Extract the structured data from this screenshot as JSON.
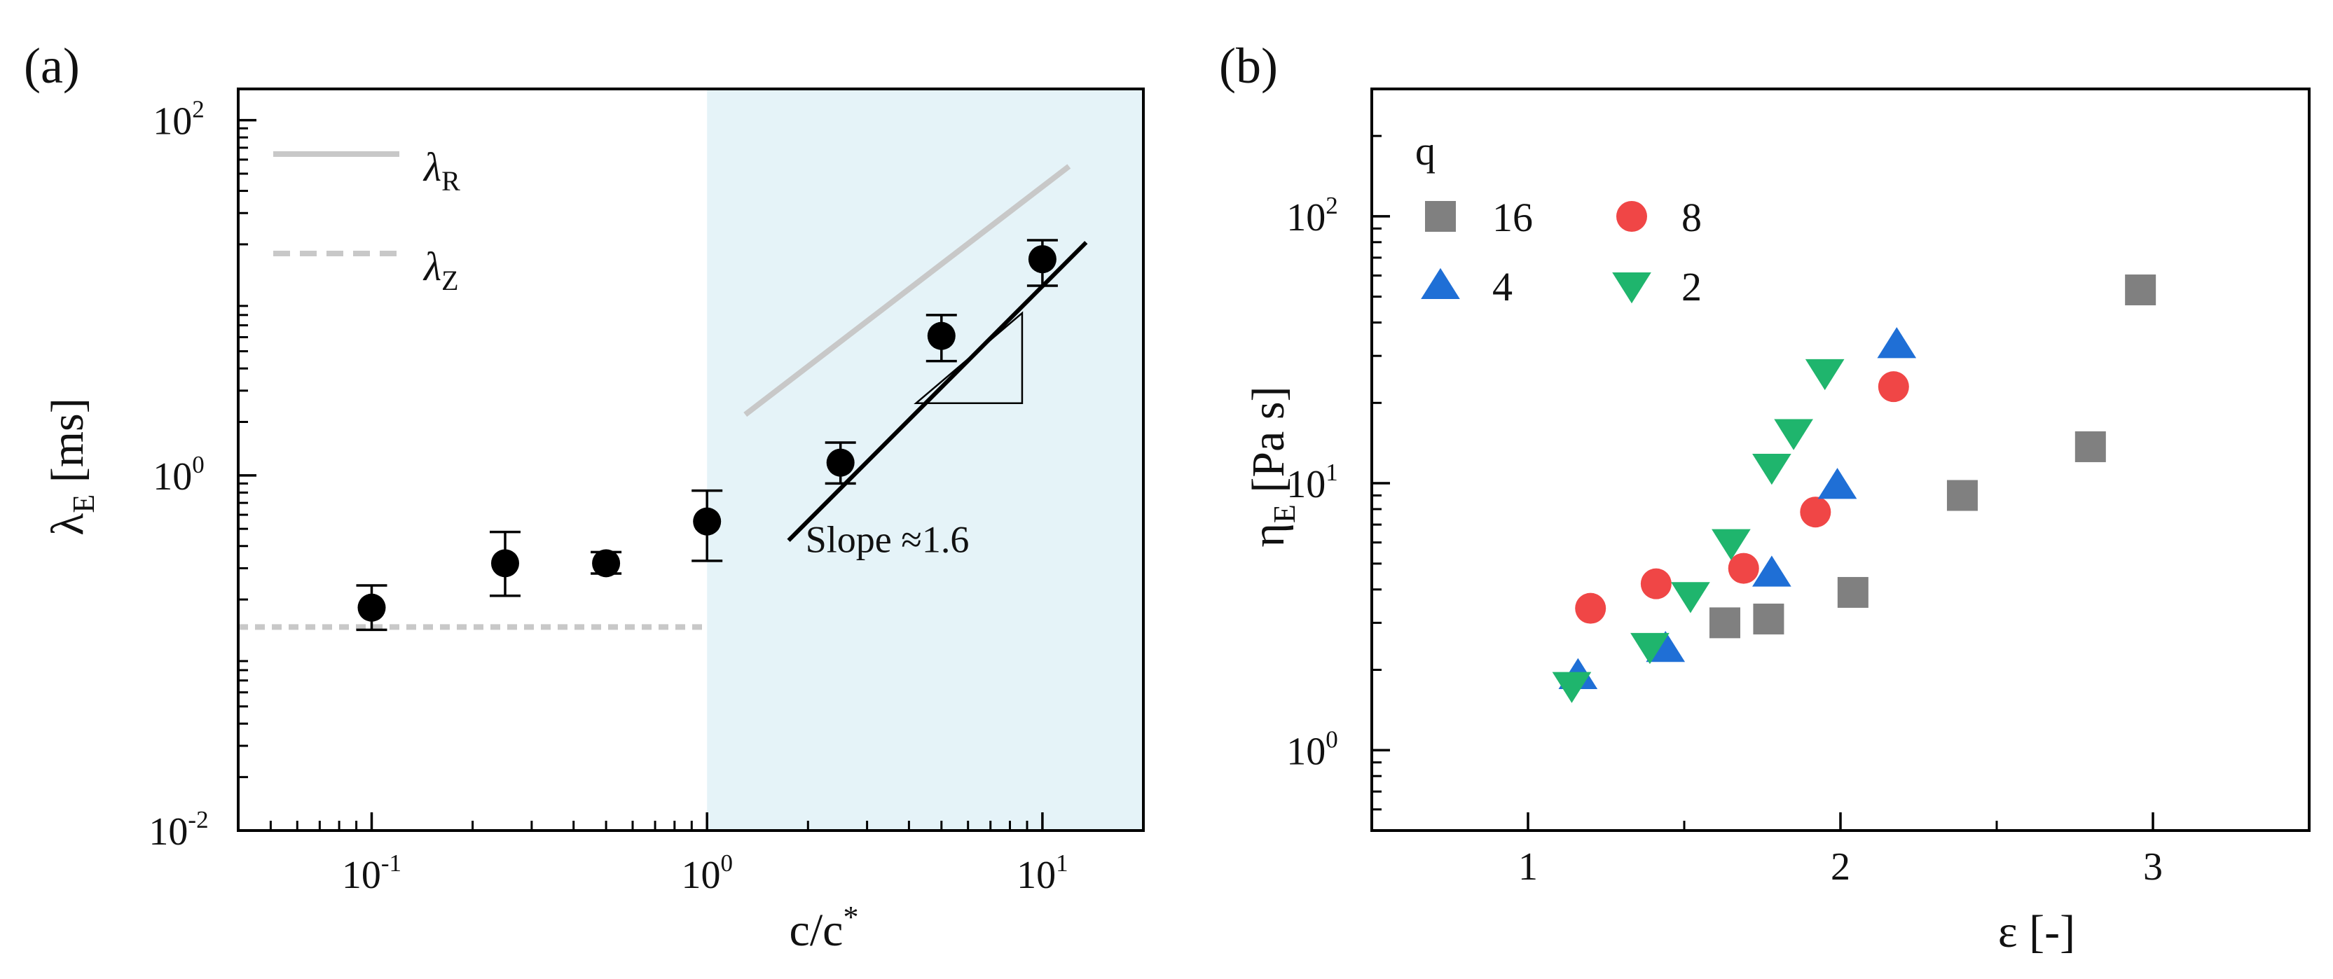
{
  "panels": {
    "a_label": "(a)",
    "b_label": "(b)"
  },
  "chart_data": [
    {
      "type": "scatter",
      "panel": "(a)",
      "xlabel": "c/c",
      "xlabel_sup": "*",
      "ylabel": "λ",
      "ylabel_sub": "E",
      "ylabel_unit": " [ms]",
      "xscale": "log",
      "yscale": "log",
      "xlim": [
        0.04,
        20
      ],
      "ylim": [
        0.01,
        150
      ],
      "x_ticks": [
        {
          "value": 0.1,
          "base": "10",
          "exp": "-1"
        },
        {
          "value": 1,
          "base": "10",
          "exp": "0"
        },
        {
          "value": 10,
          "base": "10",
          "exp": "1"
        }
      ],
      "y_ticks": [
        {
          "value": 0.01,
          "base": "10",
          "exp": "-2"
        },
        {
          "value": 1,
          "base": "10",
          "exp": "0"
        },
        {
          "value": 100,
          "base": "10",
          "exp": "2"
        }
      ],
      "shaded_region": {
        "x_from": 1,
        "x_to": 20,
        "color": "#e5f3f8"
      },
      "series": [
        {
          "marker": "circle",
          "color": "#000000",
          "x": [
            0.1,
            0.25,
            0.5,
            1.0,
            2.5,
            5.0,
            10.0
          ],
          "y": [
            0.18,
            0.32,
            0.32,
            0.55,
            1.18,
            6.1,
            16.5
          ],
          "err_low": [
            0.045,
            0.11,
            0.04,
            0.22,
            0.28,
            1.7,
            4.8
          ],
          "err_high": [
            0.06,
            0.16,
            0.05,
            0.27,
            0.35,
            1.9,
            4.6
          ]
        }
      ],
      "lines": [
        {
          "name": "λ",
          "sub": "R",
          "style": "solid",
          "color": "#c8c8c8",
          "x": [
            1.3,
            12
          ],
          "y": [
            2.2,
            55
          ]
        },
        {
          "name": "λ",
          "sub": "Z",
          "style": "dashed",
          "color": "#c8c8c8",
          "x": [
            0.04,
            1.0
          ],
          "y": [
            0.14,
            0.14
          ]
        },
        {
          "style": "solid",
          "color": "#000000",
          "x": [
            1.75,
            13.5
          ],
          "y": [
            0.43,
            20.5
          ]
        }
      ],
      "slope_triangle": {
        "x": [
          4.2,
          8.7,
          8.7
        ],
        "y": [
          2.55,
          2.55,
          8.2
        ]
      },
      "annotation": "Slope ≈1.6",
      "annotation_pos": {
        "x": 2.5,
        "y": 0.37
      },
      "legend_position": "top-left"
    },
    {
      "type": "scatter",
      "panel": "(b)",
      "xlabel": "ε [-]",
      "ylabel": "η",
      "ylabel_sub": "E",
      "ylabel_unit": " [Pa s]",
      "xscale": "linear",
      "yscale": "log",
      "xlim": [
        0.5,
        3.5
      ],
      "ylim": [
        0.5,
        300
      ],
      "x_ticks": [
        {
          "value": 1,
          "label": "1"
        },
        {
          "value": 2,
          "label": "2"
        },
        {
          "value": 3,
          "label": "3"
        }
      ],
      "y_ticks": [
        {
          "value": 1,
          "base": "10",
          "exp": "0"
        },
        {
          "value": 10,
          "base": "10",
          "exp": "1"
        },
        {
          "value": 100,
          "base": "10",
          "exp": "2"
        }
      ],
      "legend_title": "q",
      "legend_position": "top-left",
      "series": [
        {
          "name": "16",
          "marker": "square",
          "color": "#808080",
          "x": [
            1.63,
            1.77,
            2.04,
            2.39,
            2.8,
            2.96
          ],
          "y": [
            3.0,
            3.1,
            3.9,
            9.0,
            13.7,
            53
          ]
        },
        {
          "name": "8",
          "marker": "circle",
          "color": "#f04646",
          "x": [
            1.2,
            1.41,
            1.69,
            1.92,
            2.17
          ],
          "y": [
            3.4,
            4.2,
            4.8,
            7.8,
            23
          ]
        },
        {
          "name": "4",
          "marker": "triangle-up",
          "color": "#1f6fd6",
          "x": [
            1.16,
            1.44,
            1.78,
            1.99,
            2.18
          ],
          "y": [
            1.9,
            2.4,
            4.6,
            9.8,
            33
          ]
        },
        {
          "name": "2",
          "marker": "triangle-down",
          "color": "#1fb56d",
          "x": [
            1.14,
            1.39,
            1.52,
            1.65,
            1.78,
            1.85,
            1.95
          ],
          "y": [
            1.75,
            2.45,
            3.8,
            6.0,
            11.5,
            15.5,
            26
          ]
        }
      ]
    }
  ]
}
